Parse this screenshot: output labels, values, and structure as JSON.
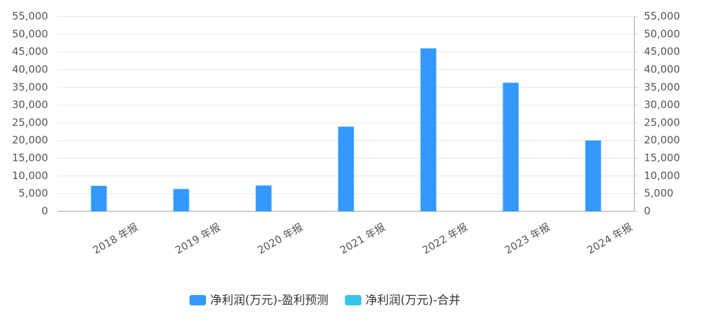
{
  "chart_data": {
    "type": "bar",
    "categories": [
      "2018 年报",
      "2019 年报",
      "2020 年报",
      "2021 年报",
      "2022 年报",
      "2023 年报",
      "2024 年报"
    ],
    "series": [
      {
        "name": "净利润(万元)-盈利预测",
        "color": "#3399ff",
        "values": [
          7200,
          6300,
          7300,
          23900,
          46000,
          36300,
          20000
        ]
      },
      {
        "name": "净利润(万元)-合并",
        "color": "#36c5e8",
        "values": [
          null,
          null,
          null,
          null,
          null,
          null,
          null
        ],
        "axis": "y2"
      }
    ],
    "ylim": [
      0,
      55000
    ],
    "yticks": [
      0,
      {
        "value": 5000,
        "label": "5,000"
      },
      {
        "value": 10000,
        "label": "10,000"
      },
      {
        "value": 15000,
        "label": "15,000"
      },
      {
        "value": 20000,
        "label": "20,000"
      },
      {
        "value": 25000,
        "label": "25,000"
      },
      {
        "value": 30000,
        "label": "30,000"
      },
      {
        "value": 35000,
        "label": "35,000"
      },
      {
        "value": 40000,
        "label": "40,000"
      },
      {
        "value": 45000,
        "label": "45,000"
      },
      {
        "value": 50000,
        "label": "50,000"
      },
      {
        "value": 55000,
        "label": "55,000"
      }
    ],
    "y2lim": [
      0,
      55000
    ],
    "y2ticks": [
      0,
      {
        "value": 5000,
        "label": "5,000"
      },
      {
        "value": 10000,
        "label": "10,000"
      },
      {
        "value": 15000,
        "label": "15,000"
      },
      {
        "value": 20000,
        "label": "20,000"
      },
      {
        "value": 25000,
        "label": "25,000"
      },
      {
        "value": 30000,
        "label": "30,000"
      },
      {
        "value": 35000,
        "label": "35,000"
      },
      {
        "value": 40000,
        "label": "40,000"
      },
      {
        "value": 45000,
        "label": "45,000"
      },
      {
        "value": 50000,
        "label": "50,000"
      },
      {
        "value": 55000,
        "label": "55,000"
      }
    ],
    "grid": true,
    "legend": "bottom"
  }
}
